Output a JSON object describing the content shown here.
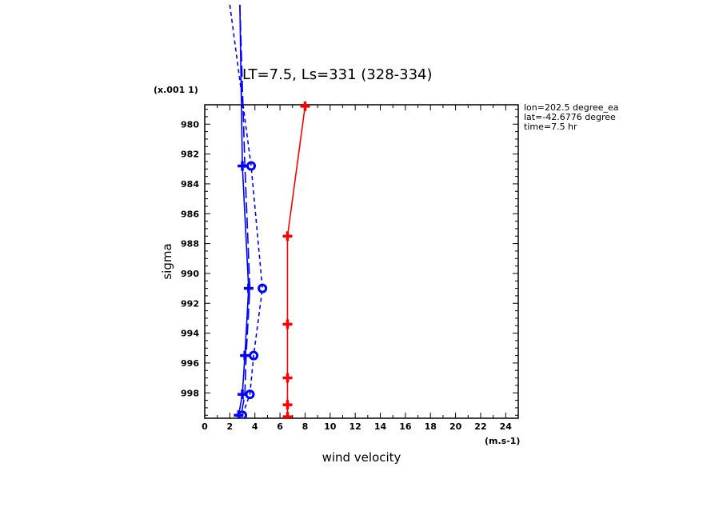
{
  "chart_data": {
    "type": "line",
    "title": "LT=7.5, Ls=331 (328-334)",
    "xlabel": "wind velocity",
    "x_unit": "(m.s-1)",
    "ylabel": "sigma",
    "y_scale_note": "(x.001 1)",
    "xlim": [
      0,
      25
    ],
    "ylim": [
      999.7,
      978.7
    ],
    "x_ticks": [
      "0",
      "2",
      "4",
      "6",
      "8",
      "10",
      "12",
      "14",
      "16",
      "18",
      "20",
      "22",
      "24"
    ],
    "y_ticks": [
      "980",
      "982",
      "984",
      "986",
      "988",
      "990",
      "992",
      "994",
      "996",
      "998"
    ],
    "info_lines": [
      "lon=202.5 degree_ea",
      "lat=-42.6776 degree",
      "time=7.5 hr"
    ],
    "series": [
      {
        "color": "#ff0000",
        "dash": "solid",
        "marker": "plus",
        "points": [
          [
            8.0,
            978.8
          ],
          [
            6.6,
            987.5
          ],
          [
            6.6,
            993.4
          ],
          [
            6.6,
            997.0
          ],
          [
            6.6,
            998.8
          ],
          [
            6.6,
            999.6
          ]
        ]
      },
      {
        "color": "#0000ff",
        "dash": "solid",
        "marker": "plus",
        "points": [
          [
            2.8,
            972.0
          ],
          [
            3.0,
            982.8
          ],
          [
            3.5,
            991.0
          ],
          [
            3.2,
            995.5
          ],
          [
            3.0,
            998.1
          ],
          [
            2.7,
            999.5
          ]
        ]
      },
      {
        "color": "#0000ff",
        "dash": "longdash",
        "marker": "none",
        "points": [
          [
            2.8,
            972.0
          ],
          [
            3.2,
            982.8
          ],
          [
            3.6,
            991.0
          ],
          [
            3.3,
            995.5
          ],
          [
            3.2,
            998.1
          ],
          [
            2.9,
            999.5
          ]
        ]
      },
      {
        "color": "#0000ff",
        "dash": "dash",
        "marker": "circle",
        "points": [
          [
            2.0,
            972.0
          ],
          [
            3.7,
            982.8
          ],
          [
            4.6,
            991.0
          ],
          [
            3.9,
            995.5
          ],
          [
            3.6,
            998.1
          ],
          [
            3.0,
            999.5
          ]
        ]
      }
    ]
  }
}
